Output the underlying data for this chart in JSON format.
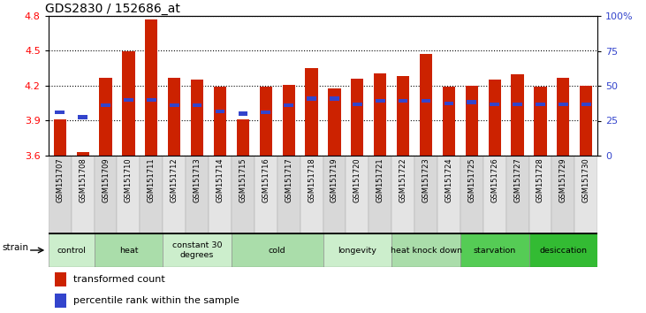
{
  "title": "GDS2830 / 152686_at",
  "samples": [
    "GSM151707",
    "GSM151708",
    "GSM151709",
    "GSM151710",
    "GSM151711",
    "GSM151712",
    "GSM151713",
    "GSM151714",
    "GSM151715",
    "GSM151716",
    "GSM151717",
    "GSM151718",
    "GSM151719",
    "GSM151720",
    "GSM151721",
    "GSM151722",
    "GSM151723",
    "GSM151724",
    "GSM151725",
    "GSM151726",
    "GSM151727",
    "GSM151728",
    "GSM151729",
    "GSM151730"
  ],
  "bar_values": [
    3.91,
    3.63,
    4.27,
    4.5,
    4.77,
    4.27,
    4.25,
    4.19,
    3.91,
    4.19,
    4.21,
    4.35,
    4.18,
    4.26,
    4.31,
    4.28,
    4.47,
    4.19,
    4.2,
    4.25,
    4.3,
    4.19,
    4.27,
    4.2
  ],
  "blue_dot_values": [
    3.97,
    3.93,
    4.03,
    4.08,
    4.08,
    4.03,
    4.03,
    3.98,
    3.96,
    3.97,
    4.03,
    4.09,
    4.09,
    4.04,
    4.07,
    4.07,
    4.07,
    4.05,
    4.06,
    4.04,
    4.04,
    4.04,
    4.04,
    4.04
  ],
  "bar_color": "#cc2200",
  "blue_dot_color": "#3344cc",
  "ylim_left": [
    3.6,
    4.8
  ],
  "yticks_left": [
    3.6,
    3.9,
    4.2,
    4.5,
    4.8
  ],
  "yticks_right": [
    0,
    25,
    50,
    75,
    100
  ],
  "groups": [
    {
      "label": "control",
      "start": 0,
      "end": 2,
      "color": "#cceecc"
    },
    {
      "label": "heat",
      "start": 2,
      "end": 5,
      "color": "#aaddaa"
    },
    {
      "label": "constant 30\ndegrees",
      "start": 5,
      "end": 8,
      "color": "#cceecc"
    },
    {
      "label": "cold",
      "start": 8,
      "end": 12,
      "color": "#aaddaa"
    },
    {
      "label": "longevity",
      "start": 12,
      "end": 15,
      "color": "#cceecc"
    },
    {
      "label": "heat knock down",
      "start": 15,
      "end": 18,
      "color": "#aaddaa"
    },
    {
      "label": "starvation",
      "start": 18,
      "end": 21,
      "color": "#55cc55"
    },
    {
      "label": "desiccation",
      "start": 21,
      "end": 24,
      "color": "#33bb33"
    }
  ]
}
